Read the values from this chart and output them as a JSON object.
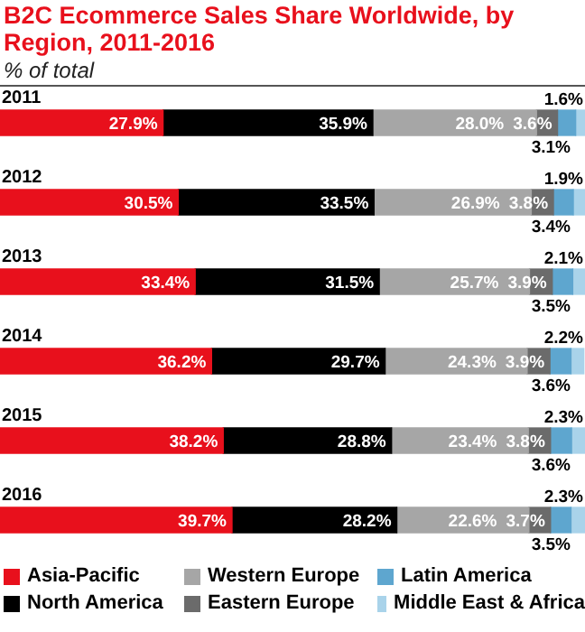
{
  "chart_data": {
    "type": "bar",
    "orientation": "horizontal",
    "stacked": true,
    "title": "B2C Ecommerce Sales Share Worldwide, by Region, 2011-2016",
    "subtitle": "% of total",
    "legend": "bottom",
    "categories": [
      "2011",
      "2012",
      "2013",
      "2014",
      "2015",
      "2016"
    ],
    "series": [
      {
        "name": "Asia-Pacific",
        "color": "#e8101c",
        "values": [
          27.9,
          30.5,
          33.4,
          36.2,
          38.2,
          39.7
        ],
        "value_labels": [
          "27.9%",
          "30.5%",
          "33.4%",
          "36.2%",
          "38.2%",
          "39.7%"
        ]
      },
      {
        "name": "North America",
        "color": "#000000",
        "values": [
          35.9,
          33.5,
          31.5,
          29.7,
          28.8,
          28.2
        ],
        "value_labels": [
          "35.9%",
          "33.5%",
          "31.5%",
          "29.7%",
          "28.8%",
          "28.2%"
        ]
      },
      {
        "name": "Western Europe",
        "color": "#a6a6a6",
        "values": [
          28.0,
          26.9,
          25.7,
          24.3,
          23.4,
          22.6
        ],
        "value_labels": [
          "28.0%",
          "26.9%",
          "25.7%",
          "24.3%",
          "23.4%",
          "22.6%"
        ]
      },
      {
        "name": "Eastern Europe",
        "color": "#6b6b6b",
        "values": [
          3.6,
          3.8,
          3.9,
          3.9,
          3.8,
          3.7
        ],
        "value_labels": [
          "3.6%",
          "3.8%",
          "3.9%",
          "3.9%",
          "3.8%",
          "3.7%"
        ]
      },
      {
        "name": "Latin America",
        "color": "#5ea6cf",
        "values": [
          3.1,
          3.4,
          3.5,
          3.6,
          3.6,
          3.5
        ],
        "value_labels": [
          "3.1%",
          "3.4%",
          "3.5%",
          "3.6%",
          "3.6%",
          "3.5%"
        ]
      },
      {
        "name": "Middle East & Africa",
        "color": "#a9d3ea",
        "values": [
          1.6,
          1.9,
          2.1,
          2.2,
          2.3,
          2.3
        ],
        "value_labels": [
          "1.6%",
          "1.9%",
          "2.1%",
          "2.2%",
          "2.3%",
          "2.3%"
        ]
      }
    ]
  }
}
